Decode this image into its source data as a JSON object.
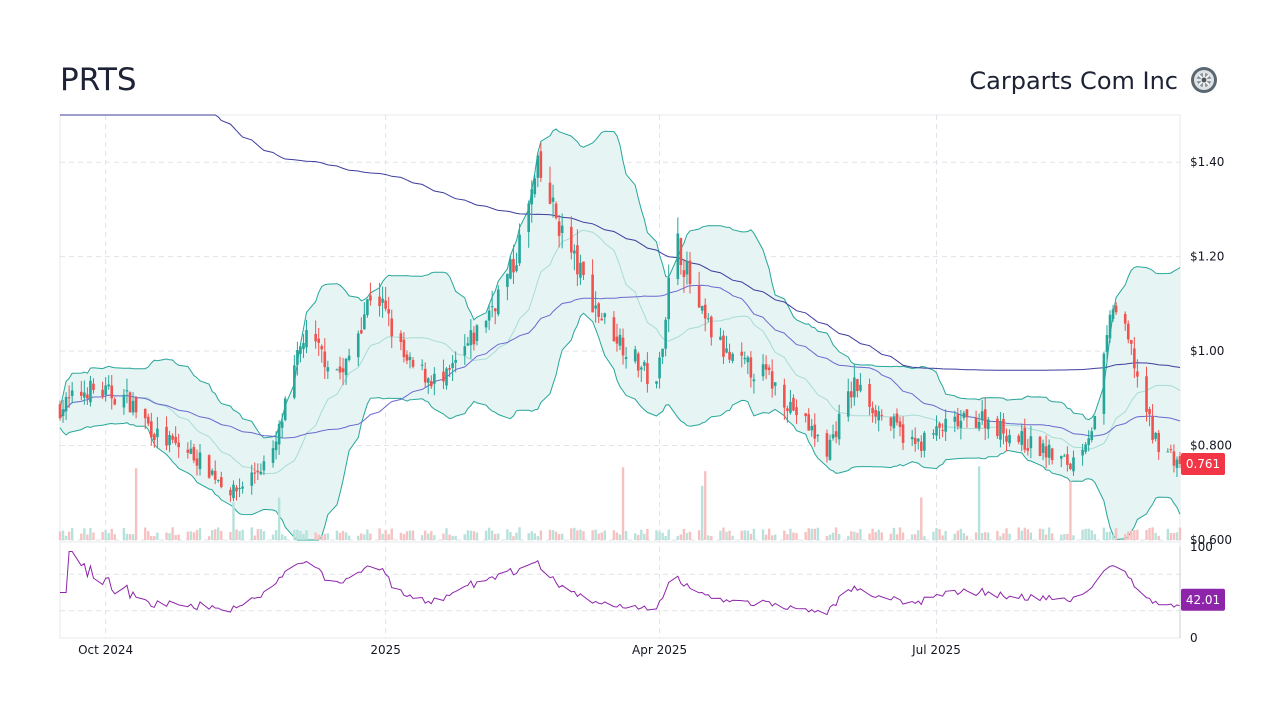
{
  "header": {
    "ticker": "PRTS",
    "company": "Carparts Com Inc",
    "logo_icon": "wheel-icon"
  },
  "chart_data": {
    "type": "candlestick",
    "price_axis": {
      "ticks": [
        {
          "value": 1.4,
          "label": "$1.40"
        },
        {
          "value": 1.2,
          "label": "$1.20"
        },
        {
          "value": 1.0,
          "label": "$1.00"
        },
        {
          "value": 0.8,
          "label": "$0.800"
        },
        {
          "value": 0.6,
          "label": "$0.600"
        }
      ],
      "range": [
        0.6,
        1.5
      ],
      "last_price": 0.761,
      "last_price_label": "0.761"
    },
    "time_axis": {
      "ticks": [
        {
          "date": "2024-10-01",
          "label": "Oct 2024"
        },
        {
          "date": "2025-01-01",
          "label": "2025"
        },
        {
          "date": "2025-04-01",
          "label": "Apr 2025"
        },
        {
          "date": "2025-07-01",
          "label": "Jul 2025"
        }
      ],
      "range": [
        "2024-09-16",
        "2025-09-19"
      ]
    },
    "rsi": {
      "ticks": [
        {
          "value": 100,
          "label": "100"
        },
        {
          "value": 0,
          "label": "0"
        }
      ],
      "bands": [
        70,
        30
      ],
      "last_value": 42.01,
      "last_label": "42.01"
    },
    "indicators": [
      "Bollinger Bands (20)",
      "SMA 50",
      "SMA 200",
      "Volume",
      "RSI (14)"
    ],
    "colors": {
      "up": "#26a69a",
      "down": "#ef5350",
      "band_fill": "#e6f4f3",
      "band_line": "#26a69a",
      "sma_short": "#6a6ad0",
      "sma_long": "#3d3d9e",
      "rsi_line": "#8e24aa",
      "price_badge": "#f23645",
      "rsi_badge": "#8e24aa"
    },
    "price_anchors": [
      [
        "2024-09-16",
        0.88
      ],
      [
        "2024-09-25",
        0.92
      ],
      [
        "2024-10-08",
        0.9
      ],
      [
        "2024-10-18",
        0.82
      ],
      [
        "2024-10-30",
        0.78
      ],
      [
        "2024-11-12",
        0.7
      ],
      [
        "2024-11-25",
        0.78
      ],
      [
        "2024-12-05",
        1.03
      ],
      [
        "2024-12-18",
        0.95
      ],
      [
        "2024-12-28",
        1.14
      ],
      [
        "2025-01-08",
        0.97
      ],
      [
        "2025-01-20",
        0.93
      ],
      [
        "2025-02-01",
        1.05
      ],
      [
        "2025-02-12",
        1.18
      ],
      [
        "2025-02-20",
        1.38
      ],
      [
        "2025-03-02",
        1.22
      ],
      [
        "2025-03-12",
        1.08
      ],
      [
        "2025-03-22",
        1.0
      ],
      [
        "2025-03-31",
        0.92
      ],
      [
        "2025-04-06",
        1.25
      ],
      [
        "2025-04-14",
        1.08
      ],
      [
        "2025-04-24",
        0.98
      ],
      [
        "2025-05-06",
        0.95
      ],
      [
        "2025-05-16",
        0.87
      ],
      [
        "2025-05-26",
        0.79
      ],
      [
        "2025-06-04",
        0.93
      ],
      [
        "2025-06-12",
        0.87
      ],
      [
        "2025-06-24",
        0.8
      ],
      [
        "2025-07-04",
        0.84
      ],
      [
        "2025-07-16",
        0.86
      ],
      [
        "2025-07-26",
        0.82
      ],
      [
        "2025-08-05",
        0.79
      ],
      [
        "2025-08-14",
        0.76
      ],
      [
        "2025-08-22",
        0.85
      ],
      [
        "2025-08-28",
        1.1
      ],
      [
        "2025-09-03",
        1.0
      ],
      [
        "2025-09-10",
        0.82
      ],
      [
        "2025-09-19",
        0.76
      ]
    ]
  }
}
